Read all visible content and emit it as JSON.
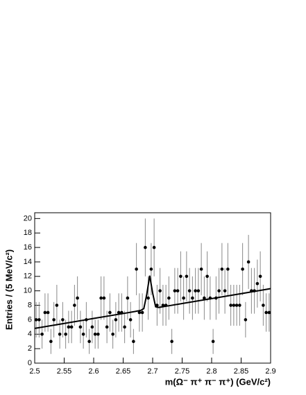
{
  "chart_data": {
    "type": "scatter",
    "y_label": "Entries / (5 MeV/c²)",
    "x_label": "m(Ω⁻ π⁺ π⁻ π⁺)   (GeV/c²)",
    "color": "#000000",
    "x": [
      2.5025,
      2.5075,
      2.5125,
      2.5175,
      2.5225,
      2.5275,
      2.5325,
      2.5375,
      2.5425,
      2.5475,
      2.5525,
      2.5575,
      2.5625,
      2.5675,
      2.5725,
      2.5775,
      2.5825,
      2.5875,
      2.5925,
      2.5975,
      2.6025,
      2.6075,
      2.6125,
      2.6175,
      2.6225,
      2.6275,
      2.6325,
      2.6375,
      2.6425,
      2.6475,
      2.6525,
      2.6575,
      2.6625,
      2.6675,
      2.6725,
      2.6775,
      2.6825,
      2.6875,
      2.6925,
      2.6975,
      2.7025,
      2.7075,
      2.7125,
      2.7175,
      2.7225,
      2.7275,
      2.7325,
      2.7375,
      2.7425,
      2.7475,
      2.7525,
      2.7575,
      2.7625,
      2.7675,
      2.7725,
      2.7775,
      2.7825,
      2.7875,
      2.7925,
      2.7975,
      2.8025,
      2.8075,
      2.8125,
      2.8175,
      2.8225,
      2.8275,
      2.8325,
      2.8375,
      2.8425,
      2.8475,
      2.8525,
      2.8575,
      2.8625,
      2.8675,
      2.8725,
      2.8775,
      2.8825,
      2.8875,
      2.8925,
      2.8975
    ],
    "values": [
      6,
      6,
      4,
      7,
      7,
      3,
      6,
      8,
      4,
      6,
      4,
      5,
      5,
      8,
      9,
      5,
      4,
      6,
      3,
      5,
      4,
      4,
      9,
      9,
      5,
      7,
      4,
      6,
      7,
      7,
      5,
      9,
      6,
      3,
      13,
      7,
      7,
      16,
      9,
      13,
      16,
      8,
      10,
      8,
      8,
      9,
      3,
      10,
      10,
      12,
      9,
      12,
      10,
      9,
      10,
      10,
      13,
      9,
      12,
      9,
      3,
      9,
      10,
      13,
      10,
      13,
      8,
      8,
      8,
      8,
      13,
      6,
      14,
      10,
      10,
      11,
      12,
      8,
      7,
      7
    ],
    "errors": [
      2.45,
      2.45,
      2,
      2.65,
      2.65,
      1.73,
      2.45,
      2.83,
      2,
      2.45,
      2,
      2.24,
      2.24,
      2.83,
      3,
      2.24,
      2,
      2.45,
      1.73,
      2.24,
      2,
      2,
      3,
      3,
      2.24,
      2.65,
      2,
      2.45,
      2.65,
      2.65,
      2.24,
      3,
      2.45,
      1.73,
      3.61,
      2.65,
      2.65,
      4,
      3,
      3.61,
      4,
      2.83,
      3.16,
      2.83,
      2.83,
      3,
      1.73,
      3.16,
      3.16,
      3.46,
      3,
      3.46,
      3.16,
      3,
      3.16,
      3.16,
      3.61,
      3,
      3.46,
      3,
      1.73,
      3,
      3.16,
      3.61,
      3.16,
      3.61,
      2.83,
      2.83,
      2.83,
      2.83,
      3.61,
      2.45,
      3.74,
      3.16,
      3.16,
      3.32,
      3.46,
      2.83,
      2.65,
      2.65
    ],
    "fit": {
      "x": [
        2.5,
        2.55,
        2.6,
        2.65,
        2.67,
        2.68,
        2.685,
        2.69,
        2.695,
        2.7,
        2.705,
        2.71,
        2.72,
        2.75,
        2.8,
        2.85,
        2.9
      ],
      "values": [
        4.8,
        5.49,
        6.18,
        6.86,
        7.14,
        7.3,
        7.54,
        9.5,
        12.1,
        9.7,
        7.8,
        7.7,
        7.83,
        8.24,
        8.93,
        9.61,
        10.3
      ]
    },
    "xlim": [
      2.5,
      2.9
    ],
    "ylim": [
      0,
      20.8
    ],
    "xticks": [
      2.5,
      2.55,
      2.6,
      2.65,
      2.7,
      2.75,
      2.8,
      2.85,
      2.9
    ],
    "yticks": [
      0,
      2,
      4,
      6,
      8,
      10,
      12,
      14,
      16,
      18,
      20
    ]
  }
}
